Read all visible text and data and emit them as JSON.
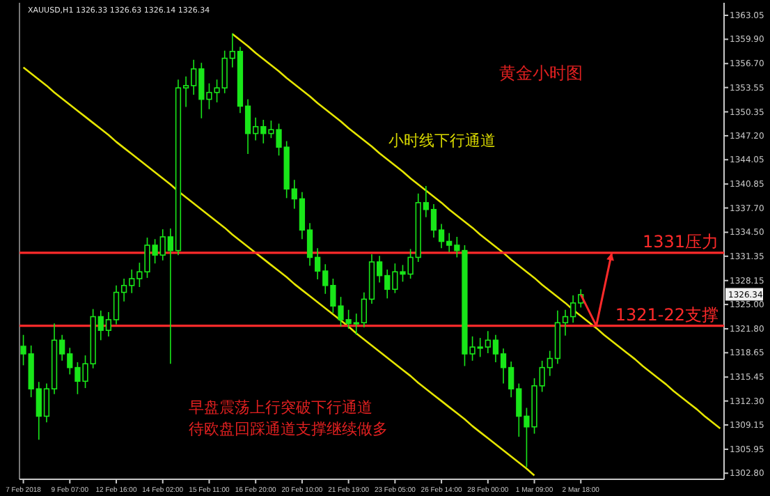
{
  "chart_data": {
    "type": "candlestick",
    "title": "XAUUSD,H1  1326.33 1326.63 1326.14 1326.34",
    "categories": [
      "7 Feb 2018",
      null,
      null,
      null,
      null,
      null,
      "9 Feb 07:00",
      null,
      null,
      null,
      null,
      null,
      "12 Feb 16:00",
      null,
      null,
      null,
      null,
      null,
      "14 Feb 02:00",
      null,
      null,
      null,
      null,
      null,
      "15 Feb 11:00",
      null,
      null,
      null,
      null,
      null,
      "16 Feb 20:00",
      null,
      null,
      null,
      null,
      null,
      "20 Feb 10:00",
      null,
      null,
      null,
      null,
      null,
      "21 Feb 19:00",
      null,
      null,
      null,
      null,
      null,
      "23 Feb 05:00",
      null,
      null,
      null,
      null,
      null,
      "26 Feb 14:00",
      null,
      null,
      null,
      null,
      null,
      "28 Feb 00:00",
      null,
      null,
      null,
      null,
      null,
      "1 Mar 09:00",
      null,
      null,
      null,
      null,
      null,
      "2 Mar 18:00",
      null,
      null,
      null,
      null,
      null,
      null,
      null,
      null,
      null,
      null,
      null,
      null,
      null,
      null,
      null,
      null,
      null,
      null
    ],
    "ohlc": [
      [
        1319.5,
        1321.0,
        1317.0,
        1318.5
      ],
      [
        1318.5,
        1319.6,
        1312.8,
        1313.9
      ],
      [
        1313.9,
        1314.8,
        1307.2,
        1310.3
      ],
      [
        1310.3,
        1314.6,
        1309.5,
        1313.9
      ],
      [
        1313.9,
        1322.5,
        1313.2,
        1320.3
      ],
      [
        1320.3,
        1321.0,
        1317.6,
        1318.5
      ],
      [
        1318.5,
        1319.3,
        1315.8,
        1316.7
      ],
      [
        1316.7,
        1317.4,
        1313.2,
        1314.9
      ],
      [
        1314.9,
        1318.3,
        1314.0,
        1317.2
      ],
      [
        1317.2,
        1324.4,
        1316.6,
        1323.4
      ],
      [
        1323.4,
        1324.2,
        1320.3,
        1321.6
      ],
      [
        1321.6,
        1324.0,
        1320.8,
        1323.0
      ],
      [
        1323.0,
        1327.5,
        1322.4,
        1326.6
      ],
      [
        1326.6,
        1328.4,
        1325.4,
        1327.5
      ],
      [
        1327.5,
        1329.6,
        1326.5,
        1328.4
      ],
      [
        1328.4,
        1330.5,
        1327.3,
        1329.3
      ],
      [
        1329.3,
        1333.8,
        1328.5,
        1332.8
      ],
      [
        1332.8,
        1333.6,
        1330.4,
        1331.5
      ],
      [
        1331.5,
        1334.9,
        1330.8,
        1333.9
      ],
      [
        1333.9,
        1335.0,
        1317.2,
        1332.1
      ],
      [
        1332.1,
        1354.6,
        1331.5,
        1353.5
      ],
      [
        1353.5,
        1355.0,
        1351.0,
        1353.8
      ],
      [
        1353.8,
        1357.2,
        1352.6,
        1356.0
      ],
      [
        1356.0,
        1356.8,
        1349.5,
        1352.0
      ],
      [
        1352.0,
        1354.1,
        1350.7,
        1352.9
      ],
      [
        1352.9,
        1354.6,
        1351.6,
        1353.5
      ],
      [
        1353.5,
        1358.4,
        1352.8,
        1357.4
      ],
      [
        1357.4,
        1360.7,
        1356.2,
        1358.3
      ],
      [
        1358.3,
        1358.9,
        1350.2,
        1351.1
      ],
      [
        1351.1,
        1352.0,
        1344.8,
        1347.5
      ],
      [
        1347.5,
        1349.6,
        1346.6,
        1348.4
      ],
      [
        1348.4,
        1349.3,
        1346.2,
        1347.5
      ],
      [
        1347.5,
        1349.2,
        1346.9,
        1348.0
      ],
      [
        1348.0,
        1348.8,
        1344.6,
        1345.7
      ],
      [
        1345.7,
        1346.5,
        1339.0,
        1340.2
      ],
      [
        1340.2,
        1341.4,
        1337.6,
        1338.9
      ],
      [
        1338.9,
        1339.8,
        1333.6,
        1334.8
      ],
      [
        1334.8,
        1335.7,
        1330.1,
        1331.2
      ],
      [
        1331.2,
        1332.4,
        1328.3,
        1329.4
      ],
      [
        1329.4,
        1330.3,
        1326.4,
        1327.5
      ],
      [
        1327.5,
        1328.4,
        1323.9,
        1324.8
      ],
      [
        1324.8,
        1326.0,
        1322.1,
        1323.0
      ],
      [
        1323.0,
        1324.3,
        1321.8,
        1322.5
      ],
      [
        1322.5,
        1323.8,
        1321.0,
        1322.6
      ],
      [
        1322.6,
        1326.6,
        1322.0,
        1325.7
      ],
      [
        1325.7,
        1331.6,
        1325.1,
        1330.6
      ],
      [
        1330.6,
        1331.4,
        1327.9,
        1328.8
      ],
      [
        1328.8,
        1329.6,
        1325.8,
        1327.0
      ],
      [
        1327.0,
        1330.4,
        1326.5,
        1329.3
      ],
      [
        1329.3,
        1330.2,
        1328.0,
        1329.0
      ],
      [
        1329.0,
        1332.3,
        1328.4,
        1331.2
      ],
      [
        1331.2,
        1339.6,
        1330.6,
        1338.4
      ],
      [
        1338.4,
        1340.6,
        1336.5,
        1337.5
      ],
      [
        1337.5,
        1338.2,
        1333.8,
        1334.8
      ],
      [
        1334.8,
        1335.6,
        1332.4,
        1333.3
      ],
      [
        1333.3,
        1334.4,
        1331.9,
        1332.8
      ],
      [
        1332.8,
        1333.9,
        1331.2,
        1332.1
      ],
      [
        1332.1,
        1332.8,
        1316.9,
        1318.5
      ],
      [
        1318.5,
        1320.8,
        1317.6,
        1319.4
      ],
      [
        1319.4,
        1320.6,
        1318.1,
        1319.4
      ],
      [
        1319.4,
        1321.5,
        1318.6,
        1320.3
      ],
      [
        1320.3,
        1321.0,
        1317.4,
        1318.5
      ],
      [
        1318.5,
        1319.2,
        1314.6,
        1316.7
      ],
      [
        1316.7,
        1317.5,
        1312.8,
        1313.9
      ],
      [
        1313.9,
        1314.6,
        1307.6,
        1310.3
      ],
      [
        1310.3,
        1311.4,
        1303.6,
        1308.9
      ],
      [
        1308.9,
        1315.3,
        1308.0,
        1314.3
      ],
      [
        1314.3,
        1317.6,
        1313.5,
        1316.7
      ],
      [
        1316.7,
        1318.9,
        1315.6,
        1317.9
      ],
      [
        1317.9,
        1324.2,
        1317.2,
        1322.6
      ],
      [
        1322.6,
        1324.3,
        1320.9,
        1323.4
      ],
      [
        1323.4,
        1326.2,
        1322.6,
        1325.2
      ],
      [
        1325.2,
        1327.0,
        1324.6,
        1326.3
      ],
      null,
      null,
      null,
      null,
      null,
      null,
      null,
      null,
      null,
      null,
      null,
      null,
      null,
      null,
      null,
      null,
      null,
      null
    ],
    "color": "#19e619",
    "series": [
      {
        "type": "line",
        "color": "#e6e600",
        "values": [
          null,
          null,
          null,
          null,
          null,
          null,
          null,
          null,
          null,
          null,
          null,
          null,
          null,
          null,
          null,
          null,
          null,
          null,
          null,
          null,
          null,
          null,
          null,
          null,
          null,
          null,
          null,
          1360.6,
          1359.8,
          1359.0,
          1358.1,
          1357.3,
          1356.5,
          1355.7,
          1354.8,
          1354.0,
          1353.2,
          1352.4,
          1351.5,
          1350.7,
          1349.9,
          1349.1,
          1348.2,
          1347.4,
          1346.6,
          1345.8,
          1344.9,
          1344.1,
          1343.3,
          1342.5,
          1341.6,
          1340.8,
          1340.0,
          1339.2,
          1338.4,
          1337.5,
          1336.7,
          1335.9,
          1335.1,
          1334.2,
          1333.4,
          1332.6,
          1331.8,
          1330.9,
          1330.1,
          1329.3,
          1328.5,
          1327.6,
          1326.8,
          1326.0,
          1325.2,
          1324.3,
          1323.5,
          1322.7,
          1321.9,
          1321.0,
          1320.2,
          1319.4,
          1318.6,
          1317.8,
          1316.9,
          1316.1,
          1315.3,
          1314.5,
          1313.6,
          1312.8,
          1312.0,
          1311.2,
          1310.3,
          1309.5,
          1308.7
        ]
      },
      {
        "type": "line",
        "color": "#e6e600",
        "values": [
          1356.2,
          1355.4,
          1354.6,
          1353.8,
          1352.9,
          1352.1,
          1351.3,
          1350.5,
          1349.7,
          1348.9,
          1348.1,
          1347.3,
          1346.4,
          1345.6,
          1344.8,
          1344.0,
          1343.2,
          1342.4,
          1341.6,
          1340.8,
          1339.9,
          1339.1,
          1338.3,
          1337.5,
          1336.7,
          1335.9,
          1335.1,
          1334.2,
          1333.4,
          1332.6,
          1331.8,
          1331.0,
          1330.2,
          1329.4,
          1328.6,
          1327.7,
          1326.9,
          1326.1,
          1325.3,
          1324.5,
          1323.7,
          1322.9,
          1322.1,
          1321.2,
          1320.4,
          1319.6,
          1318.8,
          1318.0,
          1317.2,
          1316.4,
          1315.6,
          1314.7,
          1313.9,
          1313.1,
          1312.3,
          1311.5,
          1310.7,
          1309.9,
          1309.0,
          1308.2,
          1307.4,
          1306.6,
          1305.8,
          1305.0,
          1304.2,
          1303.4,
          1302.5,
          null,
          null,
          null,
          null,
          null,
          null,
          null,
          null,
          null,
          null,
          null,
          null,
          null,
          null,
          null,
          null,
          null,
          null,
          null,
          null,
          null,
          null,
          null,
          null
        ]
      }
    ],
    "ylim": [
      1302.0,
      1364.7
    ],
    "yticks": [
      1363.05,
      {
        "value": 1359.9,
        "label": "1359.90"
      },
      {
        "value": 1356.7,
        "label": "1356.70"
      },
      1353.55,
      1350.35,
      {
        "value": 1347.2,
        "label": "1347.20"
      },
      1344.05,
      1340.85,
      {
        "value": 1337.7,
        "label": "1337.70"
      },
      {
        "value": 1334.5,
        "label": "1334.50"
      },
      1331.35,
      1328.15,
      {
        "value": 1325,
        "label": "1325.00"
      },
      {
        "value": 1321.8,
        "label": "1321.80"
      },
      1318.65,
      1315.45,
      {
        "value": 1312.3,
        "label": "1312.30"
      },
      1309.15,
      1305.95,
      {
        "value": 1302.8,
        "label": "1302.80"
      }
    ],
    "ref_lines": [
      {
        "axis": "y",
        "value": 1331.8,
        "label": "1331压力",
        "color": "#ff2a2a"
      },
      {
        "axis": "y",
        "value": 1322.2,
        "label": "1321-22支撑",
        "color": "#ff2a2a"
      }
    ],
    "annotations": [
      "黄金小时图",
      "小时线下行通道",
      "早盘震荡上行突破下行通道",
      "待欧盘回踩通道支撑继续做多",
      {
        "text": "1326.34",
        "y": 1326.34
      }
    ]
  }
}
